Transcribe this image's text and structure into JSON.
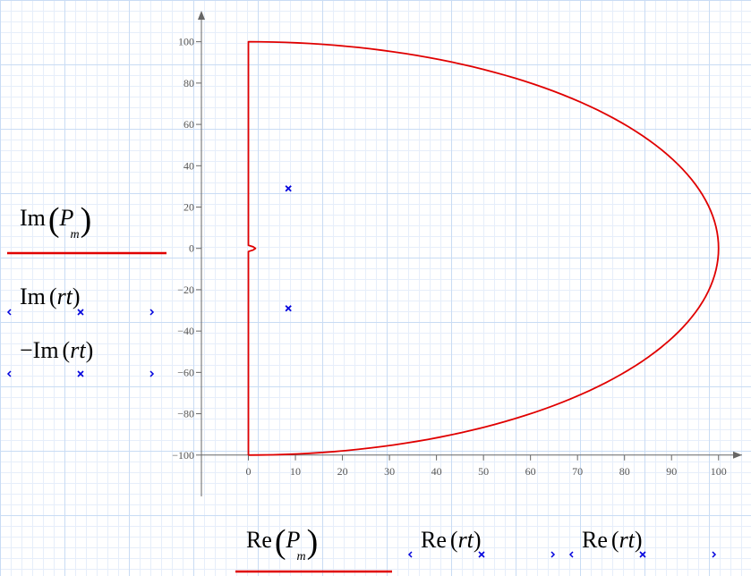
{
  "chart_data": {
    "type": "line",
    "title": "",
    "x_axis_expressions": [
      {
        "func": "Re",
        "arg": "P",
        "sub": "m",
        "style": "curve"
      },
      {
        "func": "Re",
        "arg": "(rt)",
        "style": "markers"
      },
      {
        "func": "Re",
        "arg": "(rt)",
        "style": "markers"
      }
    ],
    "y_axis_expressions": [
      {
        "func": "Im",
        "arg": "P",
        "sub": "m",
        "style": "curve"
      },
      {
        "func": "Im",
        "arg": "(rt)",
        "style": "markers"
      },
      {
        "func": "−Im",
        "arg": "(rt)",
        "style": "markers"
      }
    ],
    "xlim": [
      -10,
      105
    ],
    "ylim": [
      -120,
      115
    ],
    "x_ticks": [
      0,
      10,
      20,
      30,
      40,
      50,
      60,
      70,
      80,
      90,
      100
    ],
    "y_ticks": [
      100,
      80,
      60,
      40,
      20,
      0,
      -20,
      -40,
      -60,
      -80,
      -100
    ],
    "x_tick_labels": [
      "0",
      "10",
      "20",
      "30",
      "40",
      "50",
      "60",
      "70",
      "80",
      "90",
      "100"
    ],
    "y_tick_labels": [
      "100",
      "80",
      "60",
      "40",
      "20",
      "0",
      "−20",
      "−40",
      "−60",
      "−80",
      "−100"
    ],
    "grid": true,
    "series": [
      {
        "style": "curve",
        "color": "#e00000",
        "segments": [
          {
            "kind": "line",
            "points": [
              [
                0,
                -100
              ],
              [
                0,
                -1.5
              ]
            ]
          },
          {
            "kind": "notch",
            "points": [
              [
                0,
                -1.5
              ],
              [
                1,
                -0.8
              ],
              [
                1.5,
                0
              ],
              [
                1,
                0.8
              ],
              [
                0,
                1.5
              ]
            ]
          },
          {
            "kind": "line",
            "points": [
              [
                0,
                1.5
              ],
              [
                0,
                100
              ]
            ]
          },
          {
            "kind": "ellipse_arc",
            "center": [
              0,
              0
            ],
            "rx": 100,
            "ry": 100,
            "from_deg": 90,
            "to_deg": -90
          }
        ]
      },
      {
        "style": "markers",
        "color": "#0000dd",
        "marker": "x",
        "points": [
          [
            8.5,
            29
          ],
          [
            8.5,
            -29
          ]
        ]
      }
    ]
  },
  "colors": {
    "curve": "#e00000",
    "markers": "#0000dd",
    "axis": "#666666"
  }
}
